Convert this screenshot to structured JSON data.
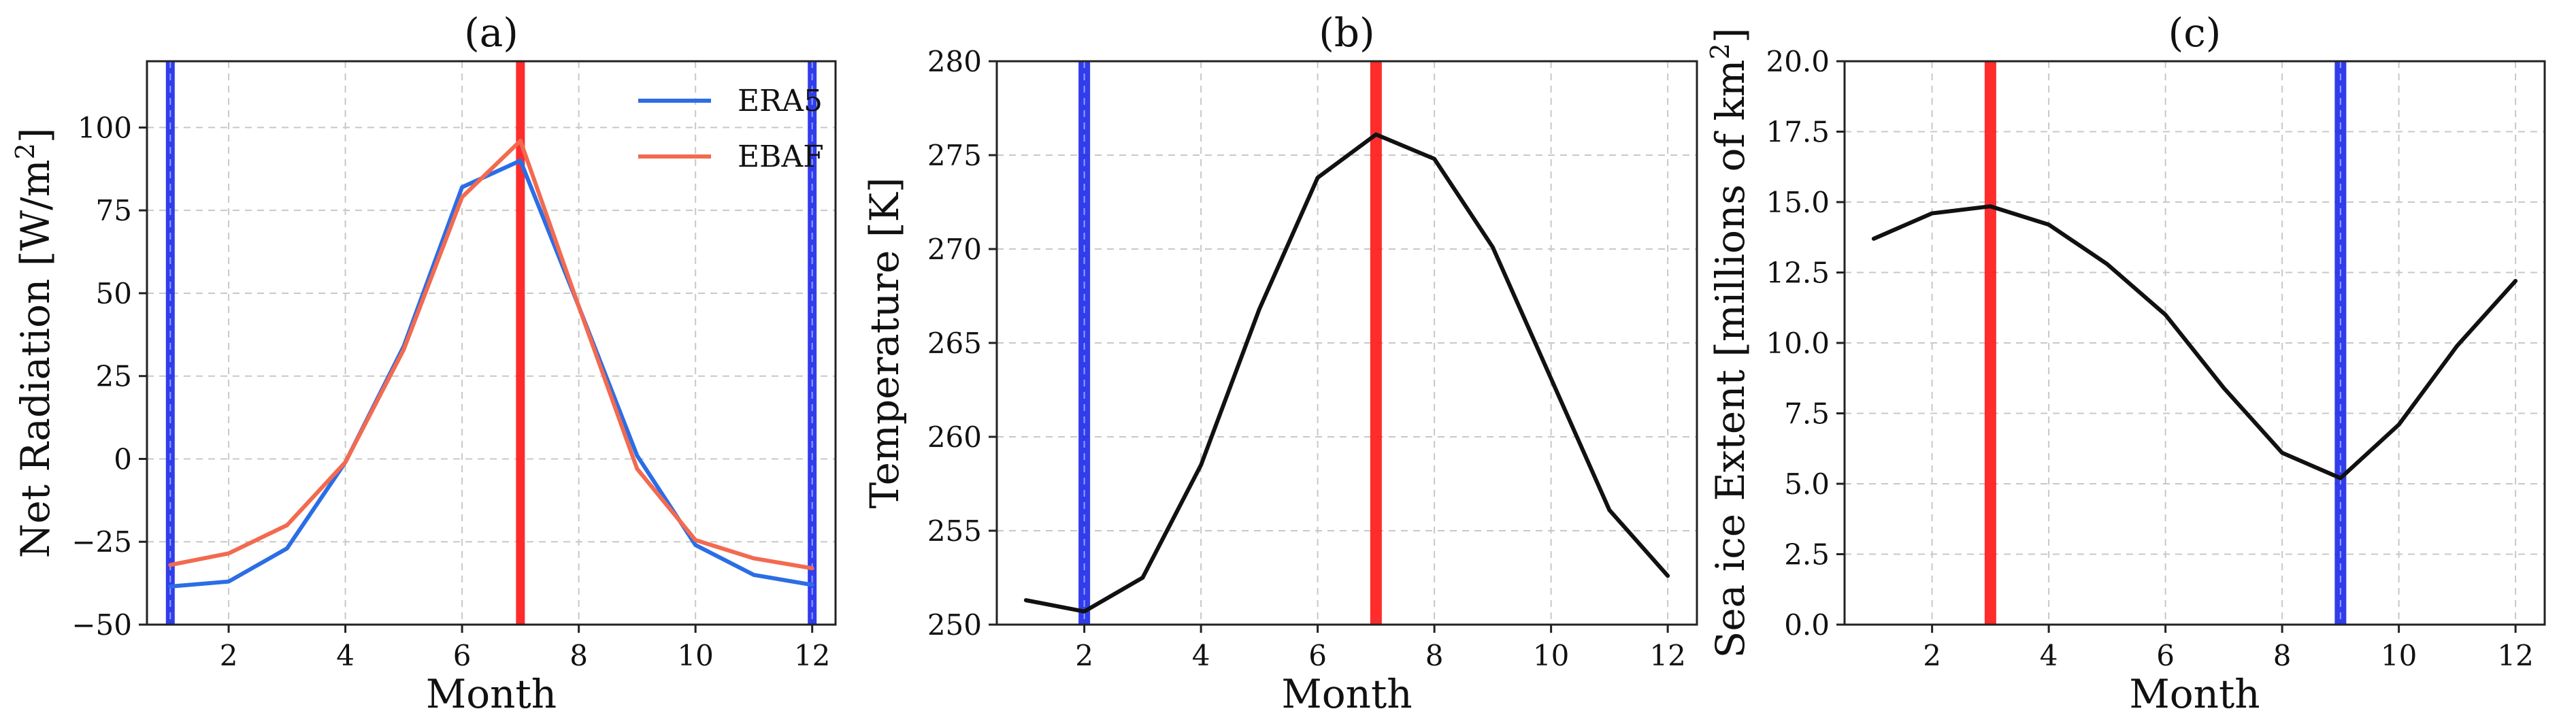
{
  "figure": {
    "colors": {
      "era5": "#2b6de6",
      "ebaf": "#f26a4f",
      "black": "#111111",
      "blue_band": "#1f2de8",
      "red_band": "#ff1a1a"
    }
  },
  "chart_data": [
    {
      "type": "line",
      "panel_label": "(a)",
      "title": "(a)",
      "xlabel": "Month",
      "ylabel": "Net Radiation [W/m²]",
      "xlim": [
        0.6,
        12.4
      ],
      "ylim": [
        -50,
        120
      ],
      "xticks": [
        2,
        4,
        6,
        8,
        10,
        12
      ],
      "xtick_labels": [
        "2",
        "4",
        "6",
        "8",
        "10",
        "12"
      ],
      "yticks": [
        -50,
        -25,
        0,
        25,
        50,
        75,
        100
      ],
      "ytick_labels": [
        "−50",
        "−25",
        "0",
        "25",
        "50",
        "75",
        "100"
      ],
      "grid": true,
      "legend": "top-right",
      "x": [
        1,
        2,
        3,
        4,
        5,
        6,
        7,
        8,
        9,
        10,
        11,
        12
      ],
      "series": [
        {
          "name": "ERA5",
          "color": "#2b6de6",
          "values": [
            -38.5,
            -37,
            -27,
            -1,
            34,
            82,
            90,
            46,
            1,
            -26,
            -35,
            -38
          ]
        },
        {
          "name": "EBAF",
          "color": "#f26a4f",
          "values": [
            -32,
            -28.5,
            -20,
            -1,
            33,
            79,
            96,
            46,
            -3,
            -24.5,
            -30,
            -33
          ]
        }
      ],
      "vertical_lines": [
        {
          "x": 1,
          "color": "#1f2de8"
        },
        {
          "x": 7,
          "color": "#ff1a1a"
        },
        {
          "x": 12,
          "color": "#1f2de8"
        }
      ]
    },
    {
      "type": "line",
      "panel_label": "(b)",
      "title": "(b)",
      "xlabel": "Month",
      "ylabel": "Temperature [K]",
      "xlim": [
        0.5,
        12.5
      ],
      "ylim": [
        250,
        280
      ],
      "xticks": [
        2,
        4,
        6,
        8,
        10,
        12
      ],
      "xtick_labels": [
        "2",
        "4",
        "6",
        "8",
        "10",
        "12"
      ],
      "yticks": [
        250,
        255,
        260,
        265,
        270,
        275,
        280
      ],
      "ytick_labels": [
        "250",
        "255",
        "260",
        "265",
        "270",
        "275",
        "280"
      ],
      "grid": true,
      "x": [
        1,
        2,
        3,
        4,
        5,
        6,
        7,
        8,
        9,
        10,
        11,
        12
      ],
      "series": [
        {
          "name": "Temperature",
          "color": "#111111",
          "values": [
            251.3,
            250.7,
            252.5,
            258.5,
            266.8,
            273.8,
            276.1,
            274.8,
            270.1,
            263.1,
            256.1,
            252.6
          ]
        }
      ],
      "vertical_lines": [
        {
          "x": 2,
          "color": "#1f2de8"
        },
        {
          "x": 7,
          "color": "#ff1a1a"
        }
      ]
    },
    {
      "type": "line",
      "panel_label": "(c)",
      "title": "(c)",
      "xlabel": "Month",
      "ylabel": "Sea ice Extent [millions of km²]",
      "xlim": [
        0.5,
        12.5
      ],
      "ylim": [
        0,
        20
      ],
      "xticks": [
        2,
        4,
        6,
        8,
        10,
        12
      ],
      "xtick_labels": [
        "2",
        "4",
        "6",
        "8",
        "10",
        "12"
      ],
      "yticks": [
        0,
        2.5,
        5,
        7.5,
        10,
        12.5,
        15,
        17.5,
        20
      ],
      "ytick_labels": [
        "0.0",
        "2.5",
        "5.0",
        "7.5",
        "10.0",
        "12.5",
        "15.0",
        "17.5",
        "20.0"
      ],
      "grid": true,
      "x": [
        1,
        2,
        3,
        4,
        5,
        6,
        7,
        8,
        9,
        10,
        11,
        12
      ],
      "series": [
        {
          "name": "Sea ice Extent",
          "color": "#111111",
          "values": [
            13.7,
            14.6,
            14.85,
            14.2,
            12.8,
            11.0,
            8.4,
            6.1,
            5.2,
            7.1,
            9.9,
            12.2
          ]
        }
      ],
      "vertical_lines": [
        {
          "x": 3,
          "color": "#ff1a1a"
        },
        {
          "x": 9,
          "color": "#1f2de8"
        }
      ]
    }
  ]
}
